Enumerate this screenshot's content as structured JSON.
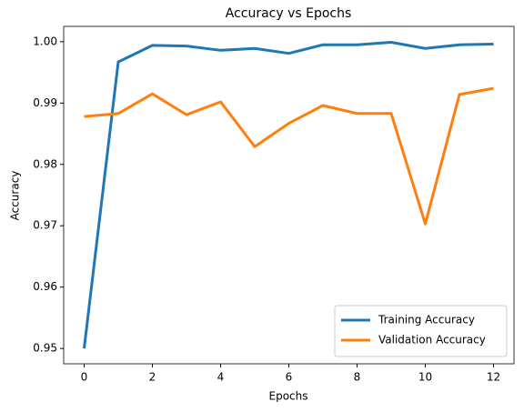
{
  "chart_data": {
    "type": "line",
    "title": "Accuracy vs Epochs",
    "x_label": "Epochs",
    "y_label": "Accuracy",
    "x": [
      0,
      1,
      2,
      3,
      4,
      5,
      6,
      7,
      8,
      9,
      10,
      11,
      12
    ],
    "series": [
      {
        "name": "Training Accuracy",
        "color": "#1f77b4",
        "values": [
          0.95,
          0.9967,
          0.9994,
          0.9993,
          0.9986,
          0.9989,
          0.9981,
          0.9995,
          0.9995,
          0.9999,
          0.9989,
          0.9995,
          0.9996
        ]
      },
      {
        "name": "Validation Accuracy",
        "color": "#ff7f0e",
        "values": [
          0.9878,
          0.9883,
          0.9915,
          0.9881,
          0.9902,
          0.9829,
          0.9867,
          0.9896,
          0.9883,
          0.9883,
          0.9703,
          0.9914,
          0.9924
        ]
      }
    ],
    "xlim": [
      -0.6,
      12.6
    ],
    "xticks": [
      0,
      2,
      4,
      6,
      8,
      10,
      12
    ],
    "ylim": [
      0.9475,
      1.0025
    ],
    "yticks": [
      0.95,
      0.96,
      0.97,
      0.98,
      0.99,
      {
        "value": 1,
        "label": "1.00"
      }
    ],
    "legend": "lower right"
  }
}
